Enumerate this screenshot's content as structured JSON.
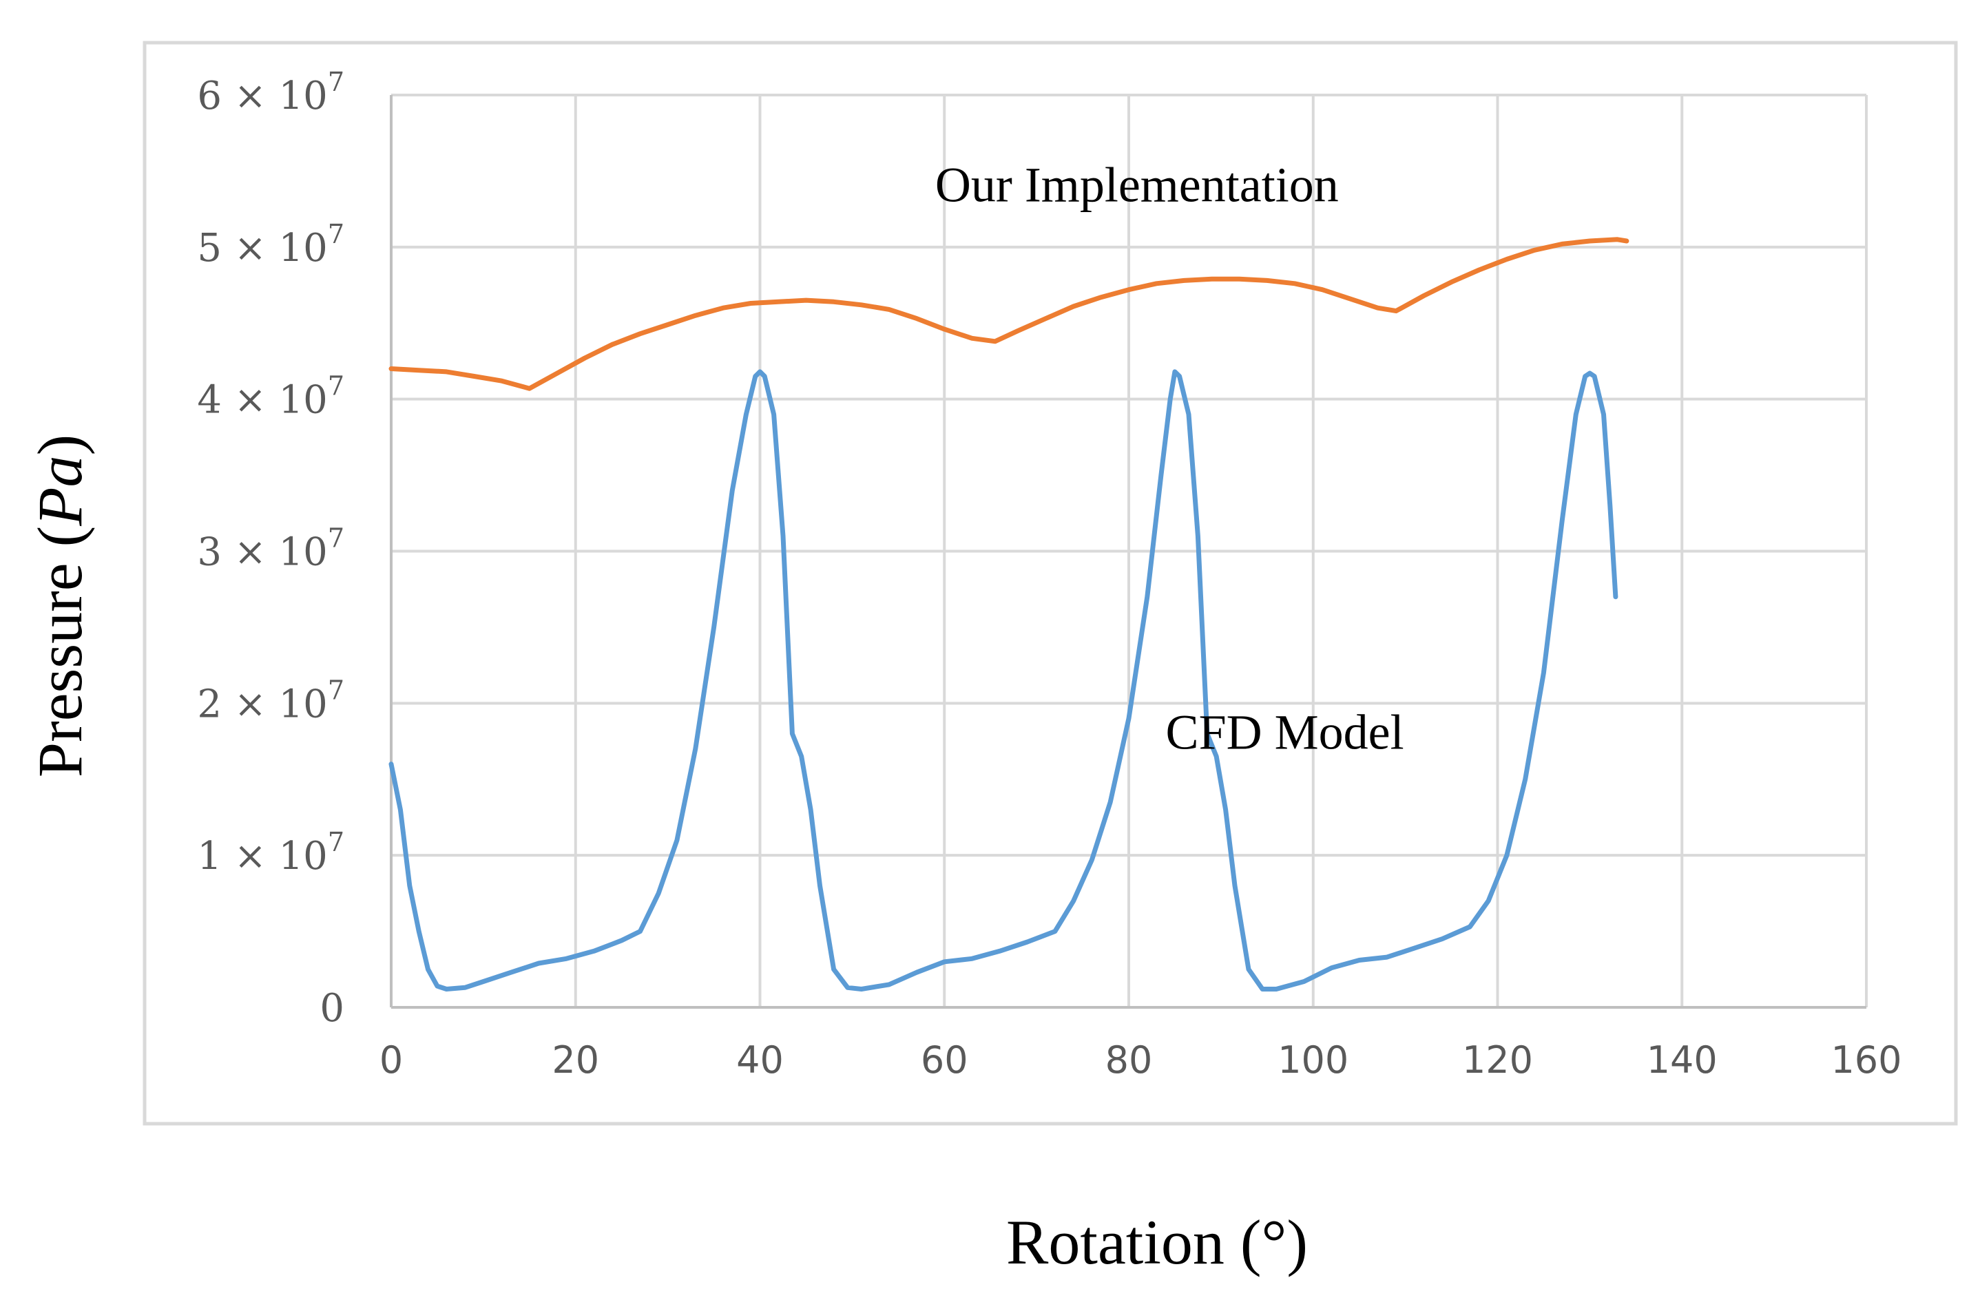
{
  "chart_data": {
    "type": "line",
    "xlabel": "Rotation (°)",
    "ylabel": "Pressure (Pa)",
    "ylabel_parts": {
      "text": "Pressure (",
      "unit": "Pa",
      "close": ")"
    },
    "xlim": [
      0,
      160
    ],
    "ylim": [
      0,
      60000000
    ],
    "grid": true,
    "x_ticks": [
      0,
      20,
      40,
      60,
      80,
      100,
      120,
      140,
      160
    ],
    "x_tick_labels": [
      "0",
      "20",
      "40",
      "60",
      "80",
      "100",
      "120",
      "140",
      "160"
    ],
    "y_ticks": [
      0,
      10000000,
      20000000,
      30000000,
      40000000,
      50000000,
      60000000
    ],
    "y_tick_labels": [
      {
        "mantissa": "0",
        "exp": ""
      },
      {
        "mantissa": "1 × 10",
        "exp": "7"
      },
      {
        "mantissa": "2 × 10",
        "exp": "7"
      },
      {
        "mantissa": "3 × 10",
        "exp": "7"
      },
      {
        "mantissa": "4 × 10",
        "exp": "7"
      },
      {
        "mantissa": "5 × 10",
        "exp": "7"
      },
      {
        "mantissa": "6 × 10",
        "exp": "7"
      }
    ],
    "series": [
      {
        "name": "Our Implementation",
        "color": "#ED7D31",
        "label_at": [
          59,
          53000000
        ],
        "x": [
          0,
          3,
          6,
          9,
          12,
          15,
          18,
          21,
          24,
          27,
          30,
          33,
          36,
          39,
          42,
          45,
          48,
          51,
          54,
          57,
          60,
          63,
          65.5,
          68,
          71,
          74,
          77,
          80,
          83,
          86,
          89,
          92,
          95,
          98,
          101,
          104,
          107,
          109,
          112,
          115,
          118,
          121,
          124,
          127,
          130,
          133,
          134
        ],
        "y": [
          42000000,
          41900000,
          41800000,
          41500000,
          41200000,
          40700000,
          41700000,
          42700000,
          43600000,
          44300000,
          44900000,
          45500000,
          46000000,
          46300000,
          46400000,
          46500000,
          46400000,
          46200000,
          45900000,
          45300000,
          44600000,
          44000000,
          43800000,
          44500000,
          45300000,
          46100000,
          46700000,
          47200000,
          47600000,
          47800000,
          47900000,
          47900000,
          47800000,
          47600000,
          47200000,
          46600000,
          46000000,
          45800000,
          46800000,
          47700000,
          48500000,
          49200000,
          49800000,
          50200000,
          50400000,
          50500000,
          50400000
        ]
      },
      {
        "name": "CFD Model",
        "color": "#5B9BD5",
        "label_at": [
          84,
          17000000
        ],
        "x": [
          0,
          1,
          2,
          3,
          4,
          5,
          6,
          8,
          10,
          13,
          16,
          19,
          22,
          25,
          27,
          29,
          31,
          33,
          35,
          37,
          38.5,
          39.5,
          40,
          40.5,
          41.5,
          42.5,
          43.5,
          44.5,
          45.5,
          46.5,
          48,
          49.5,
          51,
          54,
          57,
          60,
          63,
          66,
          69,
          72,
          74,
          76,
          78,
          80,
          82,
          83.5,
          84.5,
          85,
          85.5,
          86.5,
          87.5,
          88.5,
          89.5,
          90.5,
          91.5,
          93,
          94.5,
          96,
          99,
          102,
          105,
          108,
          111,
          114,
          117,
          119,
          121,
          123,
          125,
          127,
          128.5,
          129.5,
          130,
          130.5,
          131.5,
          132.2,
          132.8
        ],
        "y": [
          16000000,
          13000000,
          8000000,
          5000000,
          2500000,
          1400000,
          1200000,
          1300000,
          1700000,
          2300000,
          2900000,
          3200000,
          3700000,
          4400000,
          5000000,
          7500000,
          11000000,
          17000000,
          25000000,
          34000000,
          39000000,
          41500000,
          41800000,
          41500000,
          39000000,
          31000000,
          18000000,
          16500000,
          13000000,
          8000000,
          2500000,
          1300000,
          1200000,
          1500000,
          2300000,
          3000000,
          3200000,
          3700000,
          4300000,
          5000000,
          7000000,
          9700000,
          13500000,
          19000000,
          27000000,
          35000000,
          40000000,
          41800000,
          41500000,
          39000000,
          31000000,
          18000000,
          16500000,
          13000000,
          8000000,
          2500000,
          1200000,
          1200000,
          1700000,
          2600000,
          3100000,
          3300000,
          3900000,
          4500000,
          5300000,
          7000000,
          10000000,
          15000000,
          22000000,
          32000000,
          39000000,
          41500000,
          41700000,
          41500000,
          39000000,
          33000000,
          27000000
        ]
      }
    ]
  }
}
